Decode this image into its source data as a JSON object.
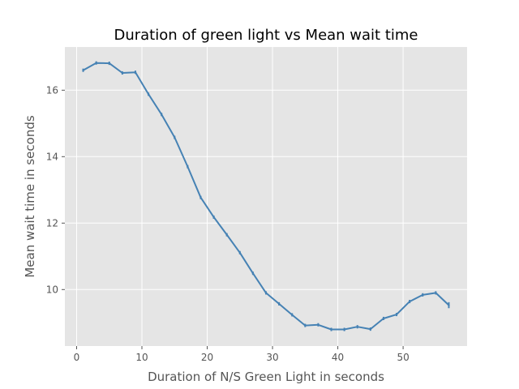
{
  "chart_data": {
    "type": "line",
    "title": "Duration of green light vs Mean wait time",
    "xlabel": "Duration of N/S Green Light in seconds",
    "ylabel": "Mean wait time in seconds",
    "xlim": [
      -1.8,
      59.8
    ],
    "ylim": [
      8.3,
      17.3
    ],
    "xticks": [
      0,
      10,
      20,
      30,
      40,
      50
    ],
    "yticks": [
      10,
      12,
      14,
      16
    ],
    "grid": true,
    "legend": "none",
    "colors": {
      "line": "#4682b4",
      "background": "#e5e5e5",
      "grid": "#ffffff",
      "text": "#555555"
    },
    "series": [
      {
        "x": [
          1,
          3,
          5,
          7,
          9,
          11,
          13,
          15,
          17,
          19,
          21,
          23,
          25,
          27,
          29,
          31,
          33,
          35,
          37,
          39,
          41,
          43,
          45,
          47,
          49,
          51,
          53,
          55,
          57
        ],
        "y": [
          16.6,
          16.82,
          16.81,
          16.52,
          16.54,
          15.88,
          15.27,
          14.58,
          13.7,
          12.77,
          12.18,
          11.65,
          11.11,
          10.49,
          9.9,
          9.57,
          9.24,
          8.92,
          8.94,
          8.8,
          8.8,
          8.88,
          8.81,
          9.13,
          9.25,
          9.64,
          9.84,
          9.9,
          9.53
        ],
        "err": [
          0.05,
          0.05,
          0.05,
          0.05,
          0.05,
          0.05,
          0.05,
          0.05,
          0.05,
          0.05,
          0.05,
          0.05,
          0.05,
          0.05,
          0.05,
          0.05,
          0.05,
          0.05,
          0.05,
          0.05,
          0.05,
          0.05,
          0.05,
          0.05,
          0.05,
          0.05,
          0.05,
          0.05,
          0.09
        ]
      }
    ]
  }
}
